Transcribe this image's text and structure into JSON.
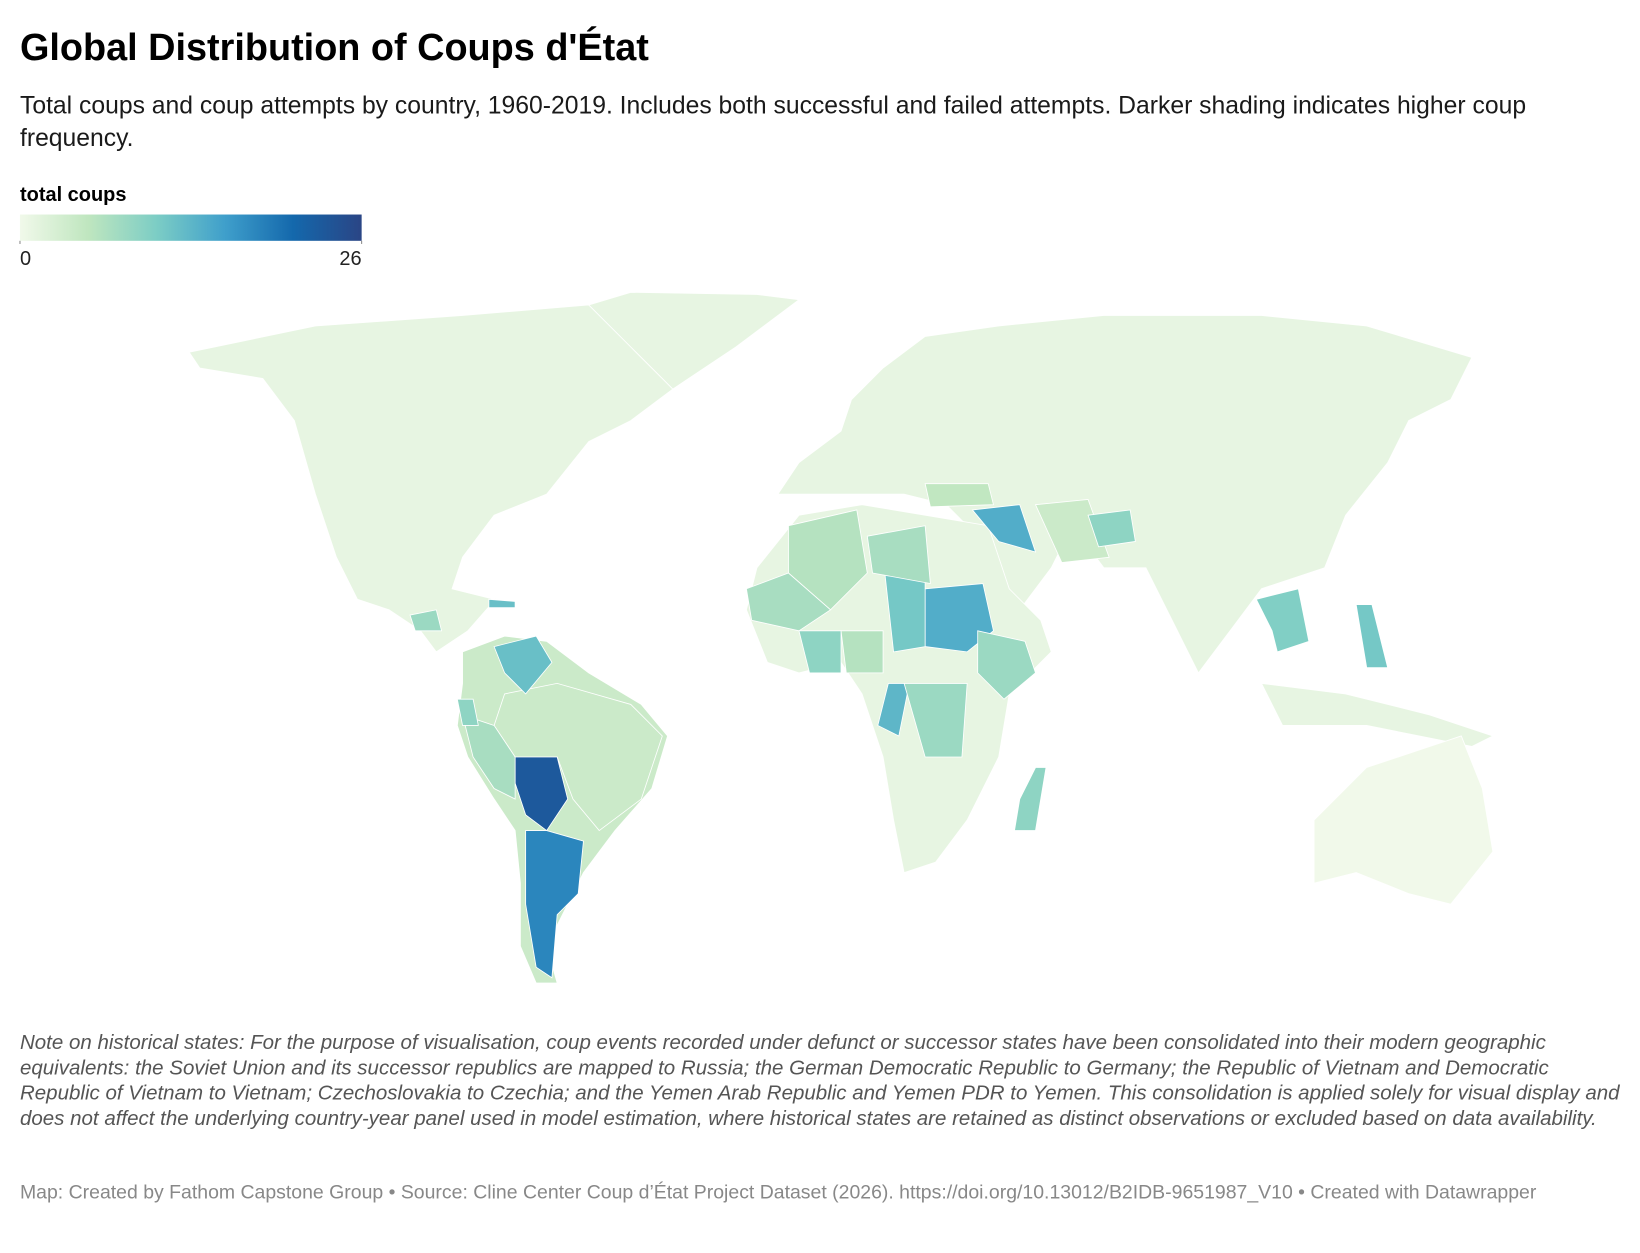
{
  "header": {
    "title": "Global Distribution of Coups d'État",
    "subtitle": "Total coups and coup attempts by country, 1960-2019. Includes both successful and failed attempts. Darker shading indicates higher coup frequency."
  },
  "legend": {
    "title": "total coups",
    "ticks": [
      0,
      26
    ],
    "colors": [
      "#f1f9ea",
      "#bfe6bf",
      "#7ccdc5",
      "#3f9fcb",
      "#1468ac",
      "#2a4585"
    ]
  },
  "map": {
    "values": [
      1,
      1,
      4,
      1,
      1,
      1,
      0,
      4,
      5,
      4,
      23,
      18,
      12,
      7,
      9,
      14,
      11,
      7,
      6,
      7,
      6,
      9,
      13,
      8,
      8,
      14,
      9,
      10,
      11,
      12,
      8,
      9
    ]
  },
  "footer": {
    "note": "Note on historical states: For the purpose of visualisation, coup events recorded under defunct or successor states have been consolidated into their modern geographic equivalents: the Soviet Union and its successor republics are mapped to Russia; the German Democratic Republic to Germany; the Republic of Vietnam and Democratic Republic of Vietnam to Vietnam; Czechoslovakia to Czechia; and the Yemen Arab Republic and Yemen PDR to Yemen. This consolidation is applied solely for visual display and does not affect the underlying country-year panel used in model estimation, where historical states are retained as distinct observations or excluded based on data availability.",
    "credit": "Map: Created by Fathom Capstone Group • Source: Cline Center Coup d’État Project Dataset (2026). https://doi.org/10.13012/B2IDB-9651987_V10 • Created with Datawrapper"
  }
}
